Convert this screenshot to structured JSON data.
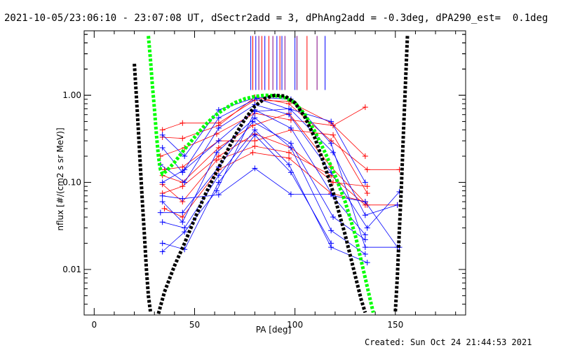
{
  "header": {
    "title": "2021-10-05/23:06:10 - 23:07:08 UT, dSectr2add = 3, dPhAng2add = -0.3deg, dPA290_est=  0.1deg"
  },
  "footer": {
    "created": "Created: Sun Oct 24 21:44:53 2021"
  },
  "chart_data": {
    "type": "line",
    "title": "2021-10-05/23:06:10 - 23:07:08 UT, dSectr2add = 3, dPhAng2add = -0.3deg, dPA290_est=  0.1deg",
    "xlabel": "PA [deg]",
    "ylabel": "nflux [#/(cm2 s sr MeV)]",
    "xlim": [
      -5,
      185
    ],
    "ylim": [
      0.003,
      5.5
    ],
    "yscale": "log",
    "xticks": [
      0,
      50,
      100,
      150
    ],
    "xtick_labels": [
      "0",
      "50",
      "100",
      "150"
    ],
    "yticks": [
      0.01,
      0.1,
      1.0
    ],
    "ytick_labels": [
      "0.01",
      "0.10",
      "1.00"
    ],
    "grid": false,
    "colors": {
      "red": "#ff0000",
      "blue": "#0000ff",
      "purple": "#800080",
      "green": "#00ff00",
      "black": "#000000"
    },
    "pa_markers": {
      "y_range": [
        1.15,
        4.8
      ],
      "lines": [
        {
          "x": 78,
          "color": "#0000ff"
        },
        {
          "x": 79,
          "color": "#ff0000"
        },
        {
          "x": 80.5,
          "color": "#0000ff"
        },
        {
          "x": 82,
          "color": "#800080"
        },
        {
          "x": 83.5,
          "color": "#ff0000"
        },
        {
          "x": 85,
          "color": "#0000ff"
        },
        {
          "x": 87,
          "color": "#ff0000"
        },
        {
          "x": 89,
          "color": "#800080"
        },
        {
          "x": 91,
          "color": "#0000ff"
        },
        {
          "x": 92.5,
          "color": "#ff0000"
        },
        {
          "x": 93.5,
          "color": "#0000ff"
        },
        {
          "x": 95,
          "color": "#800080"
        },
        {
          "x": 100,
          "color": "#0000ff"
        },
        {
          "x": 101,
          "color": "#800080"
        },
        {
          "x": 106,
          "color": "#ff0000"
        },
        {
          "x": 111,
          "color": "#800080"
        },
        {
          "x": 115,
          "color": "#0000ff"
        }
      ]
    },
    "series": [
      {
        "color": "#ff0000",
        "points": [
          [
            34,
            0.4
          ],
          [
            44,
            0.48
          ],
          [
            62,
            0.48
          ],
          [
            80,
            0.88
          ],
          [
            97,
            0.85
          ],
          [
            118,
            0.48
          ],
          [
            135,
            0.2
          ]
        ]
      },
      {
        "color": "#ff0000",
        "points": [
          [
            34,
            0.33
          ],
          [
            44,
            0.32
          ],
          [
            62,
            0.45
          ],
          [
            80,
            0.95
          ],
          [
            97,
            0.8
          ],
          [
            118,
            0.3
          ],
          [
            136,
            0.14
          ],
          [
            152,
            0.14
          ]
        ]
      },
      {
        "color": "#ff0000",
        "points": [
          [
            33,
            0.2
          ],
          [
            45,
            0.25
          ],
          [
            61,
            0.36
          ],
          [
            80,
            0.62
          ],
          [
            98,
            0.52
          ],
          [
            119,
            0.45
          ],
          [
            135,
            0.73
          ]
        ]
      },
      {
        "color": "#ff0000",
        "points": [
          [
            35,
            0.14
          ],
          [
            44,
            0.15
          ],
          [
            62,
            0.3
          ],
          [
            80,
            0.3
          ],
          [
            98,
            0.4
          ],
          [
            119,
            0.35
          ],
          [
            136,
            0.075
          ]
        ]
      },
      {
        "color": "#ff0000",
        "points": [
          [
            34,
            0.12
          ],
          [
            44,
            0.1
          ],
          [
            62,
            0.25
          ],
          [
            79,
            0.45
          ],
          [
            97,
            0.62
          ],
          [
            118,
            0.15
          ],
          [
            136,
            0.055
          ]
        ]
      },
      {
        "color": "#ff0000",
        "points": [
          [
            34,
            0.095
          ],
          [
            44,
            0.06
          ],
          [
            61,
            0.18
          ],
          [
            80,
            0.26
          ],
          [
            97,
            0.22
          ],
          [
            118,
            0.12
          ],
          [
            135,
            0.055
          ],
          [
            151,
            0.055
          ]
        ]
      },
      {
        "color": "#ff0000",
        "points": [
          [
            34,
            0.075
          ],
          [
            44,
            0.09
          ],
          [
            62,
            0.2
          ],
          [
            80,
            0.36
          ],
          [
            98,
            0.25
          ],
          [
            119,
            0.1
          ],
          [
            136,
            0.09
          ]
        ]
      },
      {
        "color": "#ff0000",
        "points": [
          [
            35,
            0.05
          ],
          [
            44,
            0.04
          ],
          [
            62,
            0.14
          ],
          [
            79,
            0.22
          ],
          [
            97,
            0.19
          ],
          [
            118,
            0.075
          ],
          [
            135,
            0.06
          ]
        ]
      },
      {
        "color": "#0000ff",
        "points": [
          [
            34,
            0.35
          ],
          [
            45,
            0.2
          ],
          [
            62,
            0.68
          ],
          [
            81,
            0.95
          ],
          [
            98,
            0.9
          ],
          [
            118,
            0.28
          ],
          [
            135,
            0.018
          ],
          [
            152,
            0.018
          ]
        ]
      },
      {
        "color": "#0000ff",
        "points": [
          [
            34,
            0.25
          ],
          [
            44,
            0.13
          ],
          [
            62,
            0.55
          ],
          [
            81,
            0.92
          ],
          [
            98,
            0.68
          ],
          [
            119,
            0.22
          ],
          [
            135,
            0.042
          ],
          [
            151,
            0.055
          ]
        ]
      },
      {
        "color": "#0000ff",
        "points": [
          [
            33,
            0.16
          ],
          [
            45,
            0.1
          ],
          [
            62,
            0.42
          ],
          [
            80,
            0.78
          ],
          [
            97,
            0.6
          ],
          [
            118,
            0.13
          ],
          [
            136,
            0.03
          ],
          [
            152,
            0.078
          ]
        ]
      },
      {
        "color": "#0000ff",
        "points": [
          [
            34,
            0.1
          ],
          [
            45,
            0.14
          ],
          [
            62,
            0.3
          ],
          [
            80,
            0.68
          ],
          [
            98,
            0.42
          ],
          [
            119,
            0.07
          ],
          [
            135,
            0.06
          ],
          [
            151,
            0.018
          ]
        ]
      },
      {
        "color": "#0000ff",
        "points": [
          [
            34,
            0.07
          ],
          [
            44,
            0.065
          ],
          [
            62,
            0.072
          ],
          [
            80,
            0.145
          ],
          [
            98,
            0.073
          ],
          [
            118,
            0.073
          ],
          [
            135,
            0.025
          ]
        ]
      },
      {
        "color": "#0000ff",
        "points": [
          [
            34,
            0.06
          ],
          [
            44,
            0.035
          ],
          [
            61,
            0.22
          ],
          [
            80,
            0.55
          ],
          [
            98,
            0.25
          ],
          [
            118,
            0.028
          ],
          [
            135,
            0.015
          ]
        ]
      },
      {
        "color": "#0000ff",
        "points": [
          [
            33,
            0.045
          ],
          [
            44,
            0.045
          ],
          [
            62,
            0.15
          ],
          [
            79,
            0.5
          ],
          [
            98,
            0.28
          ],
          [
            119,
            0.04
          ],
          [
            135,
            0.022
          ]
        ]
      },
      {
        "color": "#0000ff",
        "points": [
          [
            34,
            0.035
          ],
          [
            45,
            0.03
          ],
          [
            62,
            0.12
          ],
          [
            80,
            0.4
          ],
          [
            97,
            0.16
          ],
          [
            118,
            0.018
          ],
          [
            136,
            0.012
          ]
        ]
      },
      {
        "color": "#0000ff",
        "points": [
          [
            34,
            0.02
          ],
          [
            45,
            0.017
          ],
          [
            62,
            0.1
          ],
          [
            80,
            0.35
          ],
          [
            98,
            0.13
          ],
          [
            118,
            0.02
          ]
        ]
      },
      {
        "color": "#0000ff",
        "points": [
          [
            34,
            0.016
          ],
          [
            45,
            0.027
          ],
          [
            61,
            0.08
          ],
          [
            80,
            0.65
          ],
          [
            97,
            0.7
          ],
          [
            118,
            0.5
          ],
          [
            135,
            0.1
          ]
        ]
      }
    ],
    "fit_curves": [
      {
        "color": "#00ff00",
        "points": [
          [
            27,
            4.8
          ],
          [
            28,
            2.6
          ],
          [
            29,
            1.3
          ],
          [
            30,
            0.7
          ],
          [
            31,
            0.35
          ],
          [
            32,
            0.2
          ],
          [
            33,
            0.14
          ],
          [
            34,
            0.125
          ],
          [
            36,
            0.135
          ],
          [
            40,
            0.17
          ],
          [
            45,
            0.24
          ],
          [
            50,
            0.33
          ],
          [
            55,
            0.45
          ],
          [
            60,
            0.58
          ],
          [
            65,
            0.7
          ],
          [
            70,
            0.82
          ],
          [
            75,
            0.91
          ],
          [
            80,
            0.97
          ],
          [
            85,
            1.0
          ],
          [
            90,
            0.99
          ],
          [
            95,
            0.94
          ],
          [
            100,
            0.82
          ],
          [
            105,
            0.6
          ],
          [
            110,
            0.38
          ],
          [
            115,
            0.22
          ],
          [
            120,
            0.12
          ],
          [
            125,
            0.06
          ],
          [
            130,
            0.025
          ],
          [
            135,
            0.008
          ],
          [
            138,
            0.004
          ],
          [
            139,
            0.0032
          ]
        ]
      },
      {
        "color": "#000000",
        "points": [
          [
            20,
            2.3
          ],
          [
            21,
            1.0
          ],
          [
            22,
            0.4
          ],
          [
            23,
            0.15
          ],
          [
            24,
            0.06
          ],
          [
            25,
            0.025
          ],
          [
            26,
            0.01
          ],
          [
            27,
            0.005
          ],
          [
            28,
            0.0033
          ]
        ]
      },
      {
        "color": "#000000",
        "points": [
          [
            32,
            0.0031
          ],
          [
            35,
            0.0055
          ],
          [
            40,
            0.011
          ],
          [
            45,
            0.02
          ],
          [
            50,
            0.038
          ],
          [
            55,
            0.07
          ],
          [
            60,
            0.12
          ],
          [
            65,
            0.2
          ],
          [
            70,
            0.34
          ],
          [
            75,
            0.53
          ],
          [
            80,
            0.75
          ],
          [
            85,
            0.92
          ],
          [
            90,
            1.0
          ],
          [
            95,
            0.98
          ],
          [
            100,
            0.82
          ],
          [
            105,
            0.56
          ],
          [
            110,
            0.32
          ],
          [
            115,
            0.15
          ],
          [
            120,
            0.065
          ],
          [
            125,
            0.025
          ],
          [
            130,
            0.0085
          ],
          [
            133,
            0.0045
          ],
          [
            135,
            0.0032
          ]
        ]
      },
      {
        "color": "#000000",
        "points": [
          [
            150,
            0.0033
          ],
          [
            151,
            0.0085
          ],
          [
            152,
            0.028
          ],
          [
            153,
            0.09
          ],
          [
            154,
            0.35
          ],
          [
            155,
            1.3
          ],
          [
            156,
            4.8
          ]
        ]
      }
    ]
  }
}
